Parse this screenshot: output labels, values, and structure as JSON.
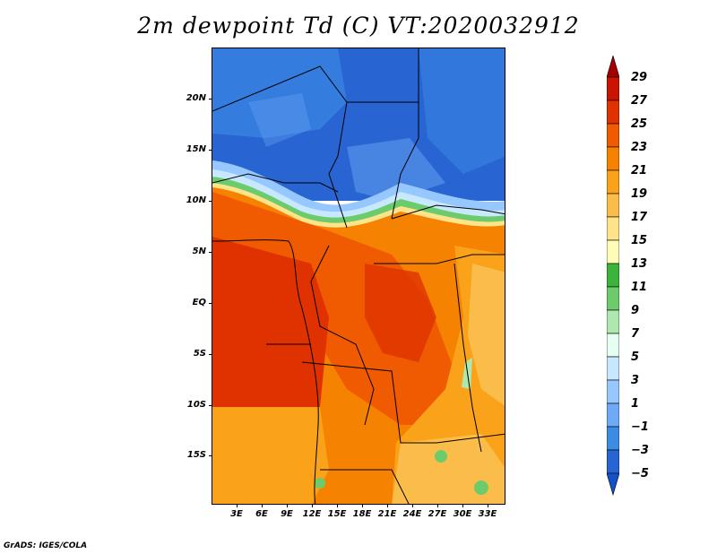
{
  "title": "2m dewpoint Td (C) VT:2020032912",
  "credit": "GrADS: IGES/COLA",
  "lat_labels": [
    "20N",
    "15N",
    "10N",
    "5N",
    "EQ",
    "5S",
    "10S",
    "15S"
  ],
  "lon_labels": [
    "3E",
    "6E",
    "9E",
    "12E",
    "15E",
    "18E",
    "21E",
    "24E",
    "27E",
    "30E",
    "33E"
  ],
  "colorbar": {
    "labels": [
      "29",
      "27",
      "25",
      "23",
      "21",
      "19",
      "17",
      "15",
      "13",
      "11",
      "9",
      "7",
      "5",
      "3",
      "1",
      "−1",
      "−3",
      "−5"
    ],
    "colors": [
      "#a50000",
      "#c81400",
      "#e03200",
      "#f05a00",
      "#f58200",
      "#f9a21a",
      "#fbbd4a",
      "#fde38a",
      "#fffcb5",
      "#3cb43c",
      "#6ccc6c",
      "#aee8ae",
      "#e6fff0",
      "#c8e8ff",
      "#96c8ff",
      "#6eaaf5",
      "#3c8ce6",
      "#2864d2",
      "#1450c8"
    ]
  },
  "map": {
    "region": "Central Africa",
    "lon_range": [
      0,
      35
    ],
    "lat_range": [
      -20,
      25
    ]
  }
}
